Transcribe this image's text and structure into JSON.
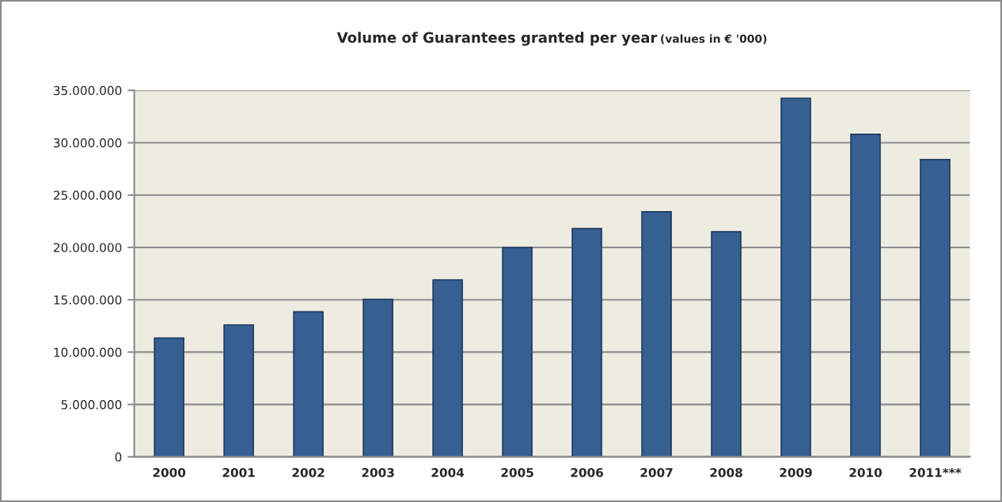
{
  "chart_data": {
    "type": "bar",
    "title": "Volume of Guarantees granted per year",
    "subtitle": "(values in € '000)",
    "categories": [
      "2000",
      "2001",
      "2002",
      "2003",
      "2004",
      "2005",
      "2006",
      "2007",
      "2008",
      "2009",
      "2010",
      "2011***"
    ],
    "values": [
      11350000,
      12600000,
      13850000,
      15050000,
      16900000,
      20000000,
      21800000,
      23400000,
      21500000,
      34250000,
      30800000,
      28400000
    ],
    "color": "#365f92",
    "ylim": [
      0,
      35000000
    ],
    "yticks": [
      0,
      {
        "value": 5000000,
        "label": "5.000.000"
      },
      {
        "value": 10000000,
        "label": "10.000.000"
      },
      {
        "value": 15000000,
        "label": "15.000.000"
      },
      {
        "value": 20000000,
        "label": "20.000.000"
      },
      {
        "value": 25000000,
        "label": "25.000.000"
      },
      {
        "value": 30000000,
        "label": "30.000.000"
      },
      {
        "value": 35000000,
        "label": "35.000.000"
      }
    ],
    "grid": "y"
  }
}
